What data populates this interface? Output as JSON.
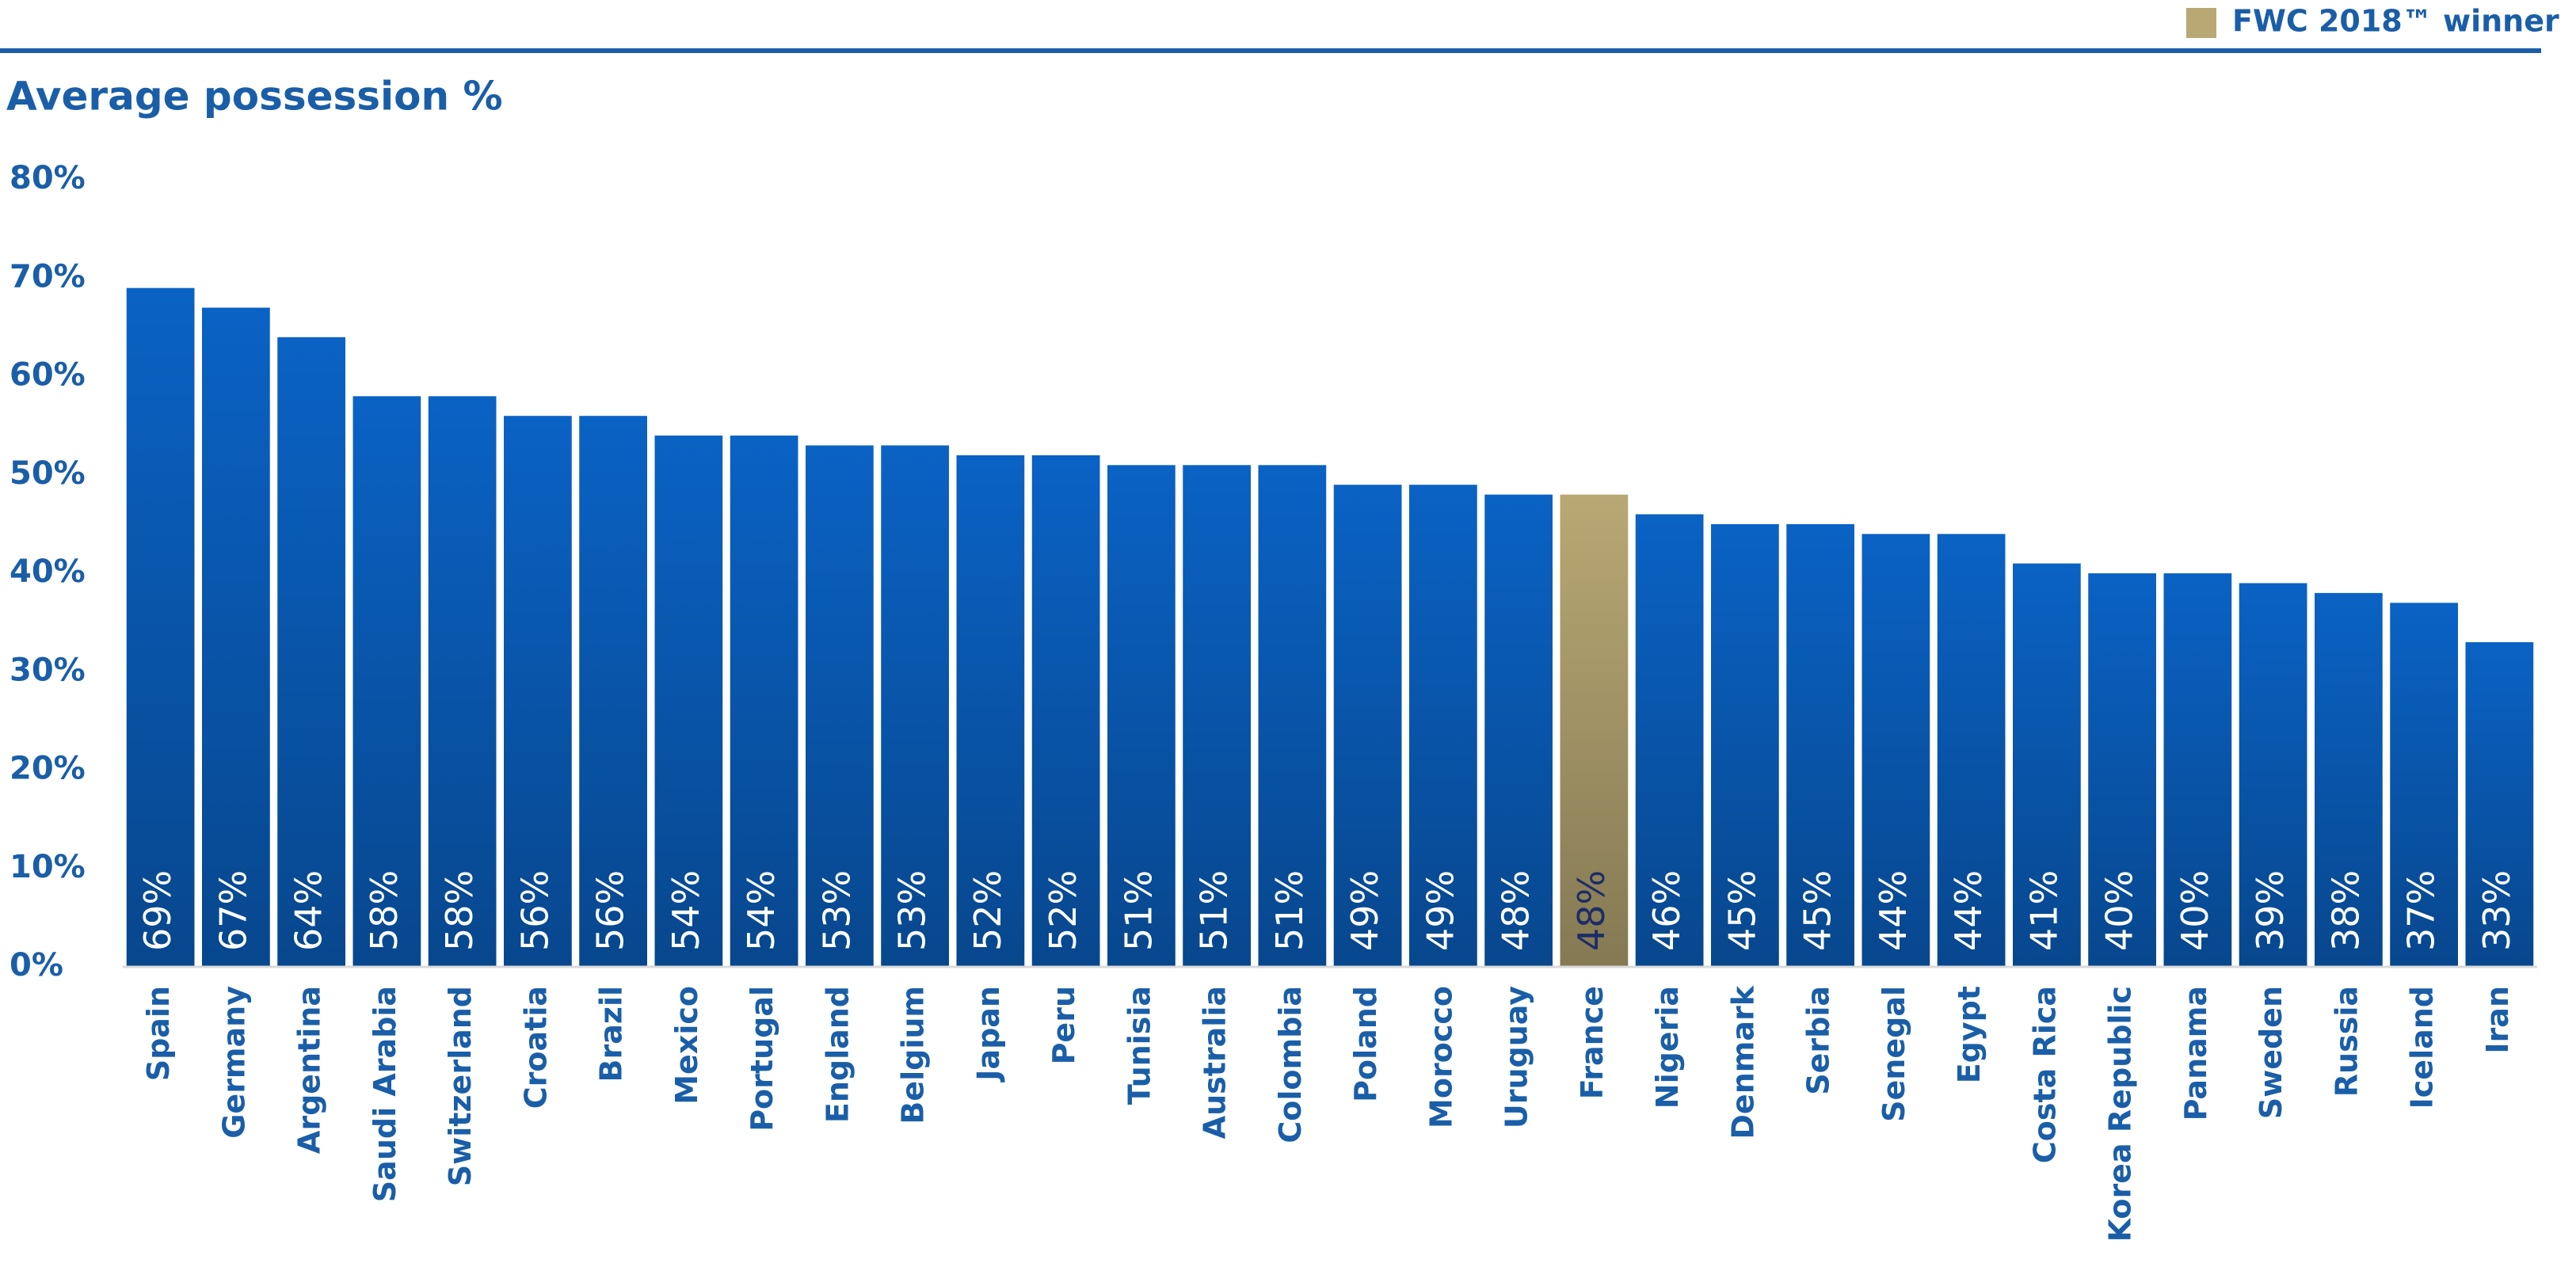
{
  "chart_data": {
    "type": "bar",
    "title": "Average possession %",
    "legend": {
      "label": "FWC 2018™ winner",
      "color": "#b8a874"
    },
    "categories": [
      "Spain",
      "Germany",
      "Argentina",
      "Saudi Arabia",
      "Switzerland",
      "Croatia",
      "Brazil",
      "Mexico",
      "Portugal",
      "England",
      "Belgium",
      "Japan",
      "Peru",
      "Tunisia",
      "Australia",
      "Colombia",
      "Poland",
      "Morocco",
      "Uruguay",
      "France",
      "Nigeria",
      "Denmark",
      "Serbia",
      "Senegal",
      "Egypt",
      "Costa Rica",
      "Korea Republic",
      "Panama",
      "Sweden",
      "Russia",
      "Iceland",
      "Iran"
    ],
    "values": [
      69,
      67,
      64,
      58,
      58,
      56,
      56,
      54,
      54,
      53,
      53,
      52,
      52,
      51,
      51,
      51,
      49,
      49,
      48,
      48,
      46,
      45,
      45,
      44,
      44,
      41,
      40,
      40,
      39,
      38,
      37,
      33
    ],
    "value_labels": [
      "69%",
      "67%",
      "64%",
      "58%",
      "58%",
      "56%",
      "56%",
      "54%",
      "54%",
      "53%",
      "53%",
      "52%",
      "52%",
      "51%",
      "51%",
      "51%",
      "49%",
      "49%",
      "48%",
      "48%",
      "46%",
      "45%",
      "45%",
      "44%",
      "44%",
      "41%",
      "40%",
      "40%",
      "39%",
      "38%",
      "37%",
      "33%"
    ],
    "color": "#0a62c4",
    "bar_colors": [
      "#0a62c4",
      "#0a62c4",
      "#0a62c4",
      "#0a62c4",
      "#0a62c4",
      "#0a62c4",
      "#0a62c4",
      "#0a62c4",
      "#0a62c4",
      "#0a62c4",
      "#0a62c4",
      "#0a62c4",
      "#0a62c4",
      "#0a62c4",
      "#0a62c4",
      "#0a62c4",
      "#0a62c4",
      "#0a62c4",
      "#0a62c4",
      "#b8a874",
      "#0a62c4",
      "#0a62c4",
      "#0a62c4",
      "#0a62c4",
      "#0a62c4",
      "#0a62c4",
      "#0a62c4",
      "#0a62c4",
      "#0a62c4",
      "#0a62c4",
      "#0a62c4",
      "#0a62c4"
    ],
    "ylim": [
      0,
      80
    ],
    "yticks": [
      {
        "value": 0,
        "label": "0%"
      },
      {
        "value": 10,
        "label": "10%"
      },
      {
        "value": 20,
        "label": "20%"
      },
      {
        "value": 30,
        "label": "30%"
      },
      {
        "value": 40,
        "label": "40%"
      },
      {
        "value": 50,
        "label": "50%"
      },
      {
        "value": 60,
        "label": "60%"
      },
      {
        "value": 70,
        "label": "70%"
      },
      {
        "value": 80,
        "label": "80%"
      }
    ],
    "grid": false
  }
}
